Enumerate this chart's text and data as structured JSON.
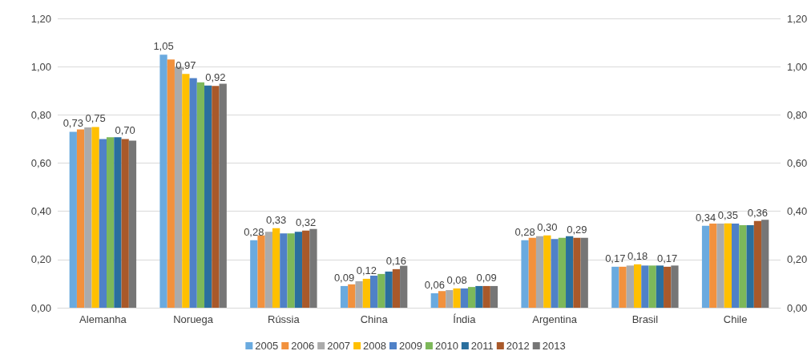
{
  "chart_data": {
    "type": "bar",
    "categories": [
      "Alemanha",
      "Noruega",
      "Rússia",
      "China",
      "Índia",
      "Argentina",
      "Brasil",
      "Chile"
    ],
    "series": [
      {
        "name": "2005",
        "color": "#6aaadf",
        "values": [
          0.73,
          1.05,
          0.28,
          0.09,
          0.06,
          0.28,
          0.17,
          0.34
        ],
        "value_labels": [
          "0,73",
          "1,05",
          "0,28",
          "0,09",
          "0,06",
          "0,28",
          "0,17",
          "0,34"
        ]
      },
      {
        "name": "2006",
        "color": "#f2913d",
        "values": [
          0.74,
          1.03,
          0.3,
          0.097,
          0.069,
          0.29,
          0.17,
          0.349
        ]
      },
      {
        "name": "2007",
        "color": "#ababab",
        "values": [
          0.748,
          1.0,
          0.315,
          0.11,
          0.073,
          0.297,
          0.175,
          0.349
        ]
      },
      {
        "name": "2008",
        "color": "#ffc000",
        "values": [
          0.75,
          0.97,
          0.33,
          0.12,
          0.08,
          0.3,
          0.18,
          0.35
        ],
        "value_labels": [
          "0,75",
          "0,97",
          "0,33",
          "0,12",
          "0,08",
          "0,30",
          "0,18",
          "0,35"
        ]
      },
      {
        "name": "2009",
        "color": "#4f81c7",
        "values": [
          0.7,
          0.952,
          0.308,
          0.133,
          0.08,
          0.285,
          0.175,
          0.349
        ]
      },
      {
        "name": "2010",
        "color": "#7db85a",
        "values": [
          0.707,
          0.935,
          0.308,
          0.14,
          0.086,
          0.29,
          0.175,
          0.342
        ]
      },
      {
        "name": "2011",
        "color": "#2a6f9e",
        "values": [
          0.707,
          0.922,
          0.315,
          0.15,
          0.09,
          0.297,
          0.175,
          0.342
        ]
      },
      {
        "name": "2012",
        "color": "#a9592a",
        "values": [
          0.7,
          0.92,
          0.32,
          0.16,
          0.09,
          0.29,
          0.17,
          0.36
        ],
        "value_labels": [
          "0,70",
          "0,92",
          "0,32",
          "0,16",
          "0,09",
          "0,29",
          "0,17",
          "0,36"
        ]
      },
      {
        "name": "2013",
        "color": "#767676",
        "values": [
          0.693,
          0.929,
          0.327,
          0.174,
          0.09,
          0.29,
          0.175,
          0.365
        ]
      }
    ],
    "ylim": [
      0,
      1.2
    ],
    "yticks": [
      {
        "value": 0,
        "label": "0,00"
      },
      {
        "value": 0.2,
        "label": "0,20"
      },
      {
        "value": 0.4,
        "label": "0,40"
      },
      {
        "value": 0.6,
        "label": "0,60"
      },
      {
        "value": 0.8,
        "label": "0,80"
      },
      {
        "value": 1.0,
        "label": "1,00"
      },
      {
        "value": 1.2,
        "label": "1,20"
      }
    ],
    "y2lim": [
      0,
      1.2
    ],
    "y2ticks": [
      {
        "value": 0,
        "label": "0,00"
      },
      {
        "value": 0.2,
        "label": "0,20"
      },
      {
        "value": 0.4,
        "label": "0,40"
      },
      {
        "value": 0.6,
        "label": "0,60"
      },
      {
        "value": 0.8,
        "label": "0,80"
      },
      {
        "value": 1.0,
        "label": "1,00"
      },
      {
        "value": 1.2,
        "label": "1,20"
      }
    ],
    "grid": "y",
    "legend": "bottom"
  }
}
